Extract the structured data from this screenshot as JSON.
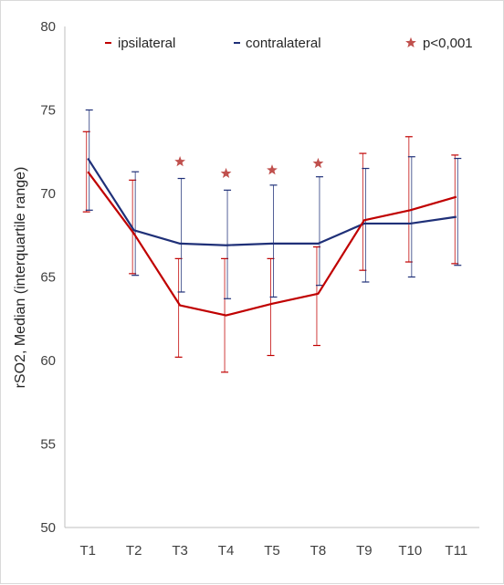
{
  "chart_data": {
    "type": "line",
    "title": "",
    "xlabel": "",
    "ylabel": "rSO2, Median (interquartile range)",
    "categories": [
      "T1",
      "T2",
      "T3",
      "T4",
      "T5",
      "T8",
      "T9",
      "T10",
      "T11"
    ],
    "ylim": [
      50,
      80
    ],
    "yticks": [
      50,
      55,
      60,
      65,
      70,
      75,
      80
    ],
    "grid": false,
    "legend_position": "top",
    "series": [
      {
        "name": "ipsilateral",
        "color": "#c00000",
        "median": [
          71.3,
          67.6,
          63.3,
          62.7,
          63.4,
          64.0,
          68.4,
          69.0,
          69.8
        ],
        "q1": [
          68.9,
          65.2,
          60.2,
          59.3,
          60.3,
          60.9,
          65.4,
          65.9,
          65.8
        ],
        "q3": [
          73.7,
          70.8,
          66.1,
          66.1,
          66.1,
          66.8,
          72.4,
          73.4,
          72.3
        ]
      },
      {
        "name": "contralateral",
        "color": "#1f3078",
        "median": [
          72.1,
          67.8,
          67.0,
          66.9,
          67.0,
          67.0,
          68.2,
          68.2,
          68.6
        ],
        "q1": [
          69.0,
          65.1,
          64.1,
          63.7,
          63.8,
          64.5,
          64.7,
          65.0,
          65.7
        ],
        "q3": [
          75.0,
          71.3,
          70.9,
          70.2,
          70.5,
          71.0,
          71.5,
          72.2,
          72.1
        ]
      }
    ],
    "significance": {
      "label": "p<0,001",
      "color": "#c0504d",
      "categories": [
        "T3",
        "T4",
        "T5",
        "T8"
      ],
      "y": [
        71.9,
        71.2,
        71.4,
        71.8
      ]
    }
  },
  "legend": {
    "ipsilateral_label": "ipsilateral",
    "contralateral_label": "contralateral",
    "significance_label": "p<0,001"
  }
}
